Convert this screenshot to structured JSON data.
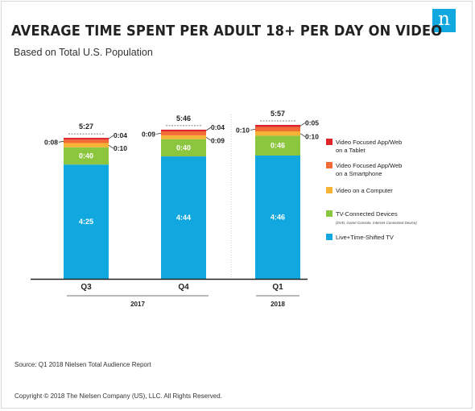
{
  "header": {
    "title": "AVERAGE TIME SPENT PER ADULT 18+ PER DAY ON VIDEO",
    "subtitle": "Based on Total U.S. Population",
    "logo_text": "n",
    "logo_color": "#11a8e0"
  },
  "footer": {
    "source": "Source: Q1 2018 Nielsen Total Audience Report",
    "copyright": "Copyright © 2018 The Nielsen Company (US), LLC. All Rights Reserved."
  },
  "chart_data": {
    "type": "bar",
    "stacked": true,
    "unit": "hours:minutes",
    "categories": [
      "Q3",
      "Q4",
      "Q1"
    ],
    "groups": [
      {
        "label": "2017",
        "categories": [
          "Q3",
          "Q4"
        ]
      },
      {
        "label": "2018",
        "categories": [
          "Q1"
        ]
      }
    ],
    "totals": [
      "5:27",
      "5:46",
      "5:57"
    ],
    "series": [
      {
        "name": "Live+Time-Shifted TV",
        "color": "#11a8e0",
        "minutes": [
          265,
          284,
          286
        ],
        "labels": [
          "4:25",
          "4:44",
          "4:46"
        ]
      },
      {
        "name": "TV-Connected Devices",
        "note": "(DVD, Game Console, Internet Connected Device)",
        "color": "#8cc63f",
        "minutes": [
          40,
          40,
          46
        ],
        "labels": [
          "0:40",
          "0:40",
          "0:46"
        ]
      },
      {
        "name": "Video on a Computer",
        "color": "#f6b335",
        "minutes": [
          10,
          9,
          10
        ],
        "labels": [
          "0:10",
          "0:09",
          "0:10"
        ]
      },
      {
        "name": "Video Focused App/Web on a Smartphone",
        "color": "#f26b35",
        "minutes": [
          8,
          9,
          10
        ],
        "labels": [
          "0:08",
          "0:09",
          "0:10"
        ]
      },
      {
        "name": "Video Focused App/Web on a Tablet",
        "color": "#e0242b",
        "minutes": [
          4,
          4,
          5
        ],
        "labels": [
          "0:04",
          "0:04",
          "0:05"
        ]
      }
    ],
    "legend_position": "right",
    "grid": false
  }
}
